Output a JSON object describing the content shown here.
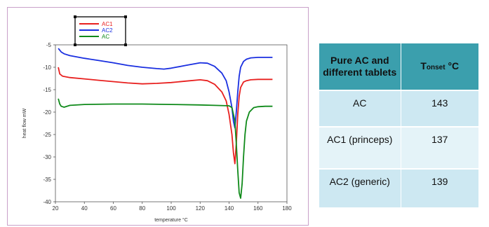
{
  "chart_data": {
    "type": "line",
    "xlabel": "temperature °C",
    "ylabel": "heat flow mW",
    "xlim": [
      20,
      180
    ],
    "ylim": [
      -40,
      -5
    ],
    "xticks": [
      20,
      40,
      60,
      80,
      100,
      120,
      140,
      160,
      180
    ],
    "yticks": [
      -5,
      -10,
      -15,
      -20,
      -25,
      -30,
      -35,
      -40
    ],
    "grid": false,
    "legend_position": "top-left",
    "series": [
      {
        "name": "AC1",
        "color": "#e8201f",
        "x": [
          22,
          23,
          25,
          30,
          40,
          50,
          60,
          70,
          80,
          90,
          100,
          110,
          120,
          125,
          130,
          135,
          138,
          140,
          142,
          143,
          144,
          145,
          146,
          147,
          148,
          150,
          152,
          155,
          160,
          165,
          170
        ],
        "y": [
          -10.0,
          -11.5,
          -12.0,
          -12.3,
          -12.6,
          -12.9,
          -13.2,
          -13.5,
          -13.7,
          -13.6,
          -13.4,
          -13.1,
          -12.8,
          -13.0,
          -13.8,
          -15.5,
          -17.5,
          -20.5,
          -25.0,
          -29.0,
          -31.5,
          -27.0,
          -20.5,
          -16.5,
          -14.5,
          -13.3,
          -13.0,
          -12.8,
          -12.7,
          -12.7,
          -12.7
        ]
      },
      {
        "name": "AC2",
        "color": "#1a2fe0",
        "x": [
          22,
          24,
          26,
          30,
          40,
          50,
          60,
          70,
          80,
          90,
          95,
          100,
          110,
          120,
          125,
          130,
          135,
          138,
          140,
          142,
          143,
          144,
          145,
          146,
          147,
          148,
          150,
          152,
          155,
          160,
          165,
          170
        ],
        "y": [
          -5.8,
          -6.6,
          -7.0,
          -7.4,
          -8.0,
          -8.5,
          -9.0,
          -9.6,
          -10.0,
          -10.3,
          -10.4,
          -10.2,
          -9.6,
          -9.0,
          -9.1,
          -9.8,
          -11.3,
          -13.0,
          -15.5,
          -19.0,
          -22.0,
          -23.5,
          -20.0,
          -15.5,
          -12.0,
          -10.0,
          -8.7,
          -8.2,
          -7.9,
          -7.8,
          -7.8,
          -7.8
        ]
      },
      {
        "name": "AC",
        "color": "#0f8a1a",
        "x": [
          22,
          23,
          24,
          26,
          30,
          40,
          60,
          80,
          100,
          120,
          130,
          140,
          142,
          144,
          145,
          146,
          147,
          148,
          149,
          150,
          151,
          152,
          154,
          157,
          160,
          165,
          170
        ],
        "y": [
          -17.0,
          -18.2,
          -18.7,
          -18.9,
          -18.5,
          -18.3,
          -18.2,
          -18.2,
          -18.3,
          -18.4,
          -18.5,
          -18.6,
          -19.0,
          -22.0,
          -27.0,
          -33.0,
          -38.0,
          -39.2,
          -36.0,
          -30.0,
          -25.0,
          -22.0,
          -20.0,
          -19.0,
          -18.8,
          -18.7,
          -18.7
        ]
      }
    ]
  },
  "table": {
    "header_col1": "Pure AC and different tablets",
    "header_col2_main": "T",
    "header_col2_sub": "onset",
    "header_col2_unit": " °C",
    "rows": [
      {
        "name": "AC",
        "value": "143"
      },
      {
        "name": "AC1 (princeps)",
        "value": "137"
      },
      {
        "name": "AC2 (generic)",
        "value": "139"
      }
    ]
  }
}
